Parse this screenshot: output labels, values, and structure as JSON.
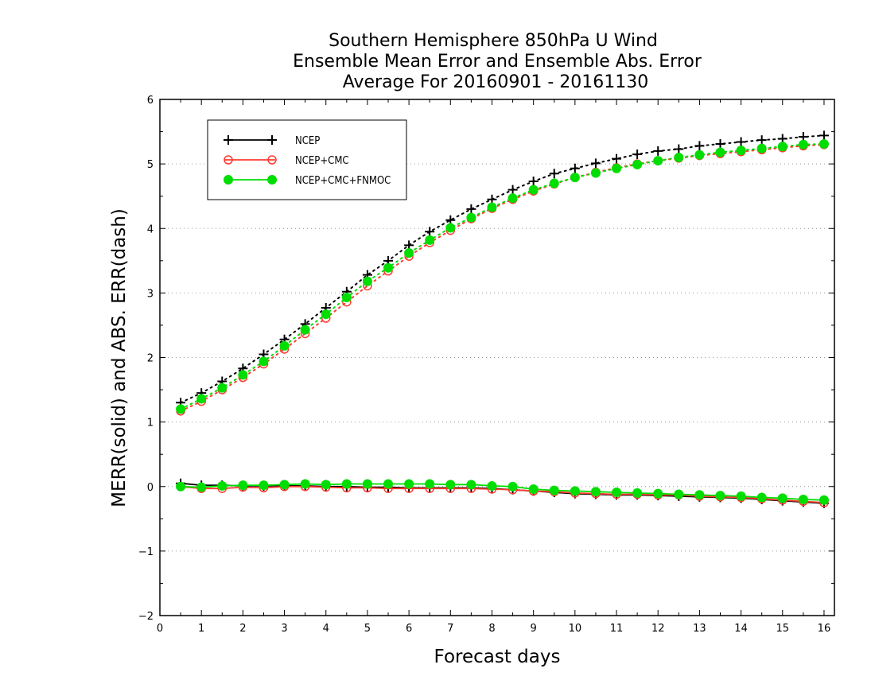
{
  "chart_data": {
    "type": "line",
    "title": [
      "Southern Hemisphere 850hPa U Wind",
      "Ensemble Mean Error and Ensemble Abs. Error",
      "Average For 20160901 - 20161130"
    ],
    "xlabel": "Forecast days",
    "ylabel": "MERR(solid) and ABS. ERR(dash)",
    "xlim": [
      0,
      16.25
    ],
    "ylim": [
      -2,
      6
    ],
    "xticks": [
      "0",
      "1",
      "2",
      "3",
      "4",
      "5",
      "6",
      "7",
      "8",
      "9",
      "10",
      "11",
      "12",
      "13",
      "14",
      "15",
      "16"
    ],
    "yticks": [
      "−2",
      "−1",
      "0",
      "1",
      "2",
      "3",
      "4",
      "5",
      "6"
    ],
    "grid": "horizontal dotted",
    "legend_position": "top-left",
    "x": [
      0.5,
      1,
      1.5,
      2,
      2.5,
      3,
      3.5,
      4,
      4.5,
      5,
      5.5,
      6,
      6.5,
      7,
      7.5,
      8,
      8.5,
      9,
      9.5,
      10,
      10.5,
      11,
      11.5,
      12,
      12.5,
      13,
      13.5,
      14,
      14.5,
      15,
      15.5,
      16
    ],
    "series": [
      {
        "name": "NCEP",
        "color": "#000000",
        "marker": "plus",
        "mean_error": [
          0.05,
          0.02,
          0.02,
          0.01,
          0.01,
          0.01,
          0.01,
          0.0,
          0.0,
          -0.01,
          -0.01,
          -0.02,
          -0.02,
          -0.02,
          -0.02,
          -0.03,
          -0.05,
          -0.07,
          -0.09,
          -0.11,
          -0.12,
          -0.13,
          -0.13,
          -0.14,
          -0.15,
          -0.16,
          -0.17,
          -0.18,
          -0.2,
          -0.22,
          -0.24,
          -0.26
        ],
        "abs_error": [
          1.3,
          1.45,
          1.63,
          1.83,
          2.05,
          2.28,
          2.52,
          2.77,
          3.02,
          3.28,
          3.5,
          3.74,
          3.95,
          4.13,
          4.3,
          4.45,
          4.6,
          4.73,
          4.85,
          4.93,
          5.01,
          5.08,
          5.15,
          5.2,
          5.23,
          5.28,
          5.31,
          5.34,
          5.37,
          5.39,
          5.42,
          5.44
        ]
      },
      {
        "name": "NCEP+CMC",
        "color": "#ff3b30",
        "marker": "open-circle",
        "mean_error": [
          0.0,
          -0.03,
          -0.03,
          -0.01,
          -0.02,
          0.0,
          0.0,
          -0.01,
          -0.02,
          -0.02,
          -0.03,
          -0.03,
          -0.03,
          -0.03,
          -0.03,
          -0.04,
          -0.05,
          -0.07,
          -0.08,
          -0.1,
          -0.11,
          -0.12,
          -0.12,
          -0.13,
          -0.13,
          -0.15,
          -0.16,
          -0.17,
          -0.19,
          -0.21,
          -0.23,
          -0.25
        ],
        "abs_error": [
          1.17,
          1.32,
          1.5,
          1.69,
          1.9,
          2.13,
          2.37,
          2.61,
          2.86,
          3.11,
          3.34,
          3.57,
          3.78,
          3.97,
          4.15,
          4.31,
          4.45,
          4.58,
          4.69,
          4.79,
          4.87,
          4.94,
          5.0,
          5.05,
          5.09,
          5.13,
          5.16,
          5.19,
          5.22,
          5.25,
          5.28,
          5.3
        ]
      },
      {
        "name": "NCEP+CMC+FNMOC",
        "color": "#00dd00",
        "marker": "filled-circle",
        "mean_error": [
          0.0,
          -0.01,
          0.01,
          0.02,
          0.02,
          0.03,
          0.04,
          0.03,
          0.04,
          0.04,
          0.04,
          0.04,
          0.04,
          0.03,
          0.03,
          0.01,
          0.0,
          -0.04,
          -0.06,
          -0.07,
          -0.08,
          -0.09,
          -0.1,
          -0.11,
          -0.12,
          -0.13,
          -0.14,
          -0.15,
          -0.17,
          -0.18,
          -0.2,
          -0.21
        ],
        "abs_error": [
          1.2,
          1.36,
          1.53,
          1.73,
          1.94,
          2.18,
          2.43,
          2.67,
          2.93,
          3.18,
          3.39,
          3.62,
          3.82,
          4.01,
          4.17,
          4.33,
          4.47,
          4.6,
          4.7,
          4.79,
          4.86,
          4.93,
          4.99,
          5.05,
          5.1,
          5.14,
          5.18,
          5.21,
          5.24,
          5.27,
          5.3,
          5.31
        ]
      }
    ]
  }
}
